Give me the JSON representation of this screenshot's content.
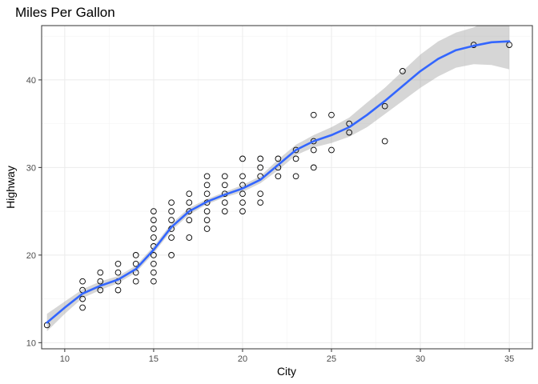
{
  "chart_data": {
    "type": "scatter",
    "title": "Miles Per Gallon",
    "xlabel": "City",
    "ylabel": "Highway",
    "xlim": [
      8.7,
      36.3
    ],
    "ylim": [
      9.3,
      46.2
    ],
    "x_ticks": [
      10,
      15,
      20,
      25,
      30,
      35
    ],
    "y_ticks": [
      10,
      20,
      30,
      40
    ],
    "grid": true,
    "legend": "none",
    "colors": {
      "points": "#000000",
      "smooth": "#3366ff",
      "band": "#999999"
    },
    "points": [
      [
        9,
        12
      ],
      [
        11,
        14
      ],
      [
        11,
        15
      ],
      [
        11,
        16
      ],
      [
        11,
        17
      ],
      [
        12,
        16
      ],
      [
        12,
        17
      ],
      [
        12,
        18
      ],
      [
        13,
        16
      ],
      [
        13,
        17
      ],
      [
        13,
        18
      ],
      [
        13,
        19
      ],
      [
        14,
        17
      ],
      [
        14,
        18
      ],
      [
        14,
        19
      ],
      [
        14,
        20
      ],
      [
        15,
        17
      ],
      [
        15,
        18
      ],
      [
        15,
        19
      ],
      [
        15,
        20
      ],
      [
        15,
        21
      ],
      [
        15,
        22
      ],
      [
        15,
        23
      ],
      [
        15,
        24
      ],
      [
        15,
        25
      ],
      [
        16,
        20
      ],
      [
        16,
        22
      ],
      [
        16,
        23
      ],
      [
        16,
        24
      ],
      [
        16,
        25
      ],
      [
        16,
        26
      ],
      [
        17,
        22
      ],
      [
        17,
        24
      ],
      [
        17,
        25
      ],
      [
        17,
        26
      ],
      [
        17,
        27
      ],
      [
        18,
        23
      ],
      [
        18,
        24
      ],
      [
        18,
        25
      ],
      [
        18,
        26
      ],
      [
        18,
        27
      ],
      [
        18,
        28
      ],
      [
        18,
        29
      ],
      [
        19,
        25
      ],
      [
        19,
        26
      ],
      [
        19,
        27
      ],
      [
        19,
        28
      ],
      [
        19,
        29
      ],
      [
        20,
        25
      ],
      [
        20,
        26
      ],
      [
        20,
        27
      ],
      [
        20,
        28
      ],
      [
        20,
        29
      ],
      [
        20,
        31
      ],
      [
        21,
        26
      ],
      [
        21,
        27
      ],
      [
        21,
        29
      ],
      [
        21,
        30
      ],
      [
        21,
        31
      ],
      [
        22,
        29
      ],
      [
        22,
        30
      ],
      [
        22,
        31
      ],
      [
        23,
        29
      ],
      [
        23,
        31
      ],
      [
        23,
        32
      ],
      [
        24,
        30
      ],
      [
        24,
        32
      ],
      [
        24,
        33
      ],
      [
        24,
        36
      ],
      [
        25,
        32
      ],
      [
        25,
        36
      ],
      [
        26,
        34
      ],
      [
        26,
        35
      ],
      [
        28,
        33
      ],
      [
        28,
        37
      ],
      [
        29,
        41
      ],
      [
        33,
        44
      ],
      [
        35,
        44
      ]
    ],
    "smooth": {
      "x": [
        9,
        10,
        11,
        12,
        13,
        14,
        15,
        16,
        17,
        18,
        19,
        20,
        21,
        22,
        23,
        24,
        25,
        26,
        27,
        28,
        29,
        30,
        31,
        32,
        33,
        34,
        35
      ],
      "y": [
        12.3,
        14.0,
        15.6,
        16.5,
        17.2,
        18.4,
        20.6,
        23.2,
        25.0,
        26.1,
        26.9,
        27.6,
        28.6,
        30.3,
        32.0,
        33.0,
        33.7,
        34.6,
        36.0,
        37.6,
        39.3,
        41.0,
        42.4,
        43.4,
        43.9,
        44.3,
        44.4
      ],
      "lower": [
        11.3,
        13.3,
        15.1,
        16.0,
        16.8,
        18.0,
        20.2,
        22.8,
        24.6,
        25.8,
        26.6,
        27.2,
        28.2,
        29.7,
        31.4,
        32.3,
        32.8,
        33.5,
        34.6,
        36.1,
        37.6,
        39.1,
        40.4,
        41.4,
        41.8,
        41.7,
        41.2
      ],
      "upper": [
        13.3,
        14.7,
        16.1,
        17.0,
        17.6,
        18.8,
        21.0,
        23.6,
        25.4,
        26.4,
        27.2,
        28.0,
        29.0,
        30.9,
        32.6,
        33.7,
        34.6,
        35.7,
        37.4,
        39.1,
        41.0,
        42.9,
        44.4,
        45.4,
        46.0,
        46.9,
        47.6
      ]
    }
  }
}
